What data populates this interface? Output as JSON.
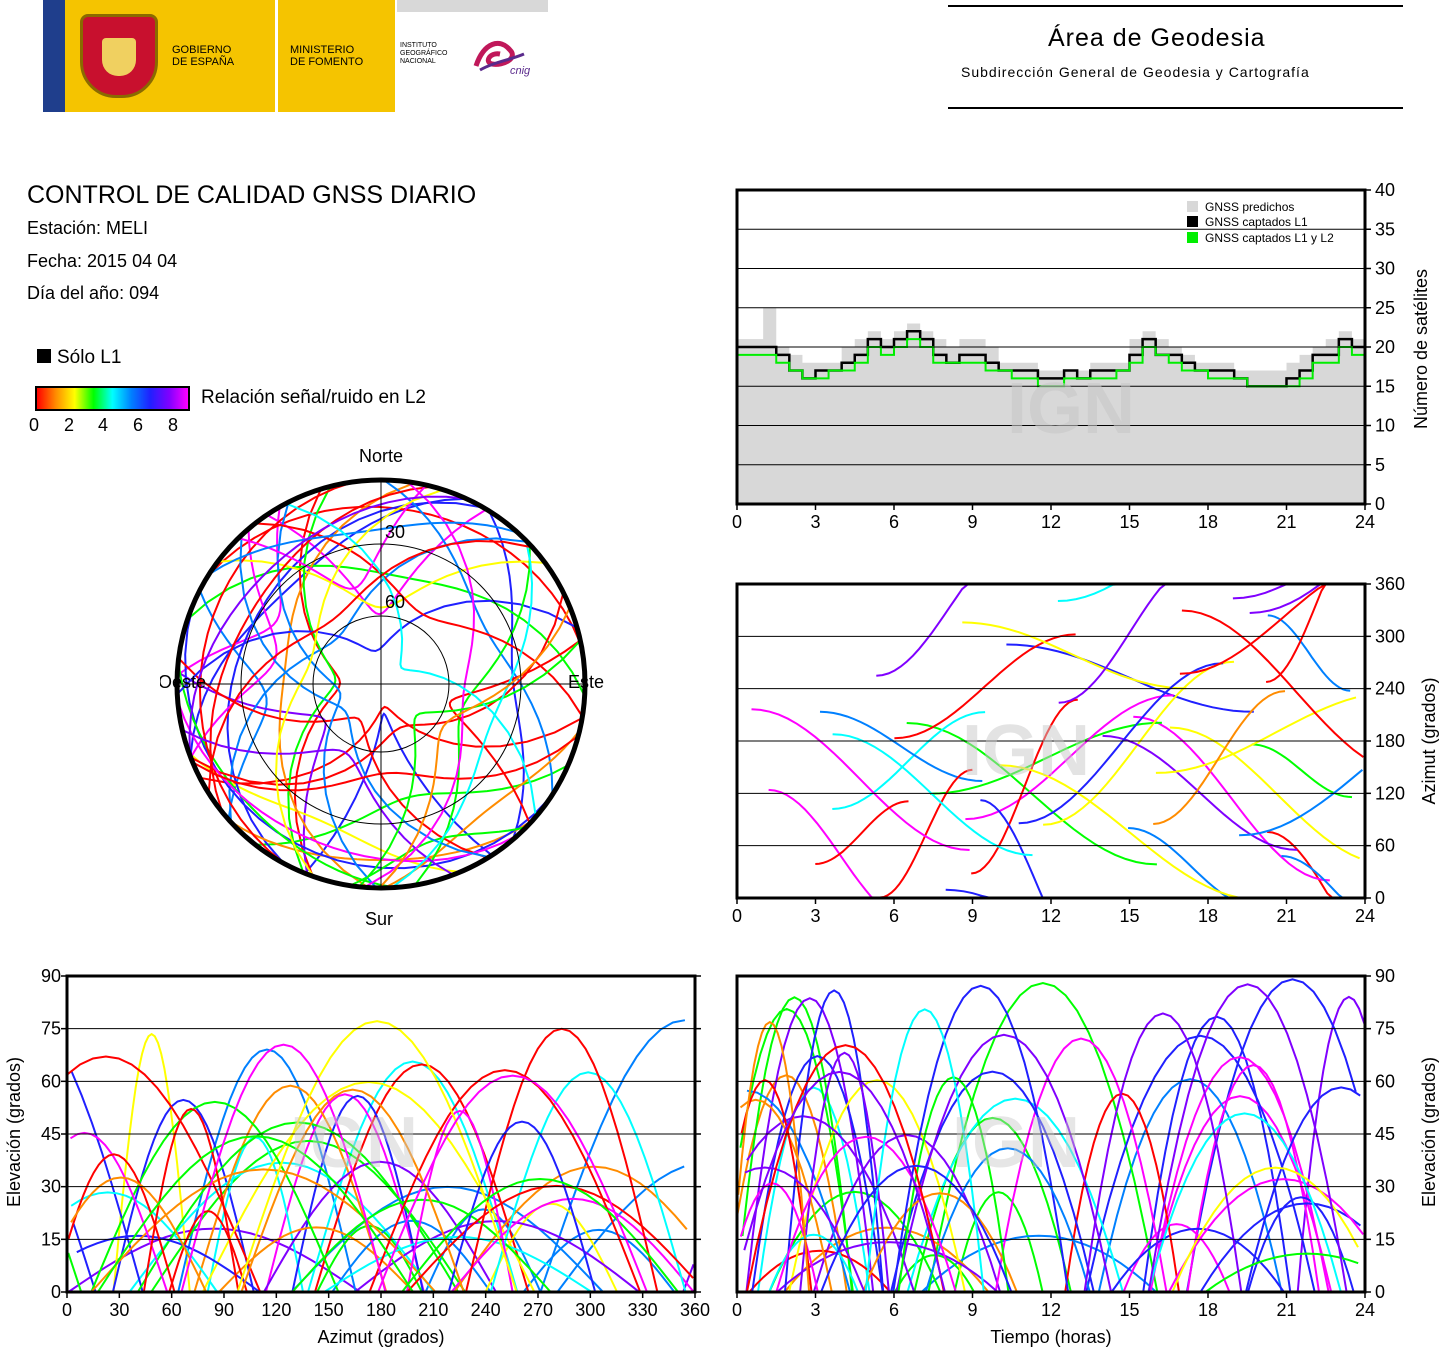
{
  "header": {
    "gobierno": "GOBIERNO\nDE ESPAÑA",
    "ministerio": "MINISTERIO\nDE FOMENTO",
    "instituto": "INSTITUTO\nGEOGRÁFICO\nNACIONAL",
    "cnig": "cnig",
    "area_title": "Área de Geodesia",
    "area_subtitle": "Subdirección General de Geodesia y Cartografía"
  },
  "info": {
    "title": "CONTROL DE CALIDAD GNSS DIARIO",
    "station": "Estación: MELI",
    "date": "Fecha: 2015 04 04",
    "doy": "Día del año: 094",
    "l1_only": "Sólo L1",
    "snr_label": "Relación señal/ruido en L2",
    "snr_ticks": [
      "0",
      "2",
      "4",
      "6",
      "8"
    ]
  },
  "colors": {
    "predicted_fill": "#d8d8d8",
    "l1_only": "#000000",
    "l1_l2": "#00ee00",
    "snr_scale": [
      "#ff0000",
      "#ff8c00",
      "#ffff00",
      "#00ff00",
      "#00ffff",
      "#0080ff",
      "#2020ff",
      "#8000ff",
      "#ff00ff"
    ]
  },
  "watermark": "IGN",
  "chart_data": [
    {
      "id": "sat-count",
      "type": "area",
      "xlim": [
        0,
        24
      ],
      "ylim": [
        0,
        40
      ],
      "xticks": [
        "0",
        "3",
        "6",
        "9",
        "12",
        "15",
        "18",
        "21",
        "24"
      ],
      "yticks": [
        "0",
        "5",
        "10",
        "15",
        "20",
        "25",
        "30",
        "35",
        "40"
      ],
      "ylabel": "Número de satélites",
      "legend_position": "top-right",
      "series": [
        {
          "name": "GNSS predichos",
          "x": [
            0,
            1,
            1.5,
            2,
            2.5,
            3,
            3.5,
            4,
            4.5,
            5,
            5.5,
            6,
            6.5,
            7,
            7.5,
            8,
            8.5,
            9,
            9.5,
            10,
            10.5,
            11,
            11.5,
            12,
            12.5,
            13,
            13.5,
            14,
            14.5,
            15,
            15.5,
            16,
            16.5,
            17,
            17.5,
            18,
            18.5,
            19,
            19.5,
            20,
            20.5,
            21,
            21.5,
            22,
            22.5,
            23,
            23.5,
            24
          ],
          "values": [
            21,
            25,
            20,
            19,
            18,
            18,
            18,
            20,
            21,
            22,
            21,
            22,
            23,
            22,
            21,
            20,
            21,
            21,
            20,
            18,
            18,
            18,
            17,
            17,
            17,
            17,
            18,
            18,
            18,
            21,
            22,
            21,
            20,
            19,
            18,
            18,
            18,
            17,
            17,
            17,
            17,
            18,
            19,
            20,
            21,
            22,
            21,
            21
          ]
        },
        {
          "name": "GNSS captados L1",
          "x": [
            0,
            1,
            1.5,
            2,
            2.5,
            3,
            3.5,
            4,
            4.5,
            5,
            5.5,
            6,
            6.5,
            7,
            7.5,
            8,
            8.5,
            9,
            9.5,
            10,
            10.5,
            11,
            11.5,
            12,
            12.5,
            13,
            13.5,
            14,
            14.5,
            15,
            15.5,
            16,
            16.5,
            17,
            17.5,
            18,
            18.5,
            19,
            19.5,
            20,
            20.5,
            21,
            21.5,
            22,
            22.5,
            23,
            23.5,
            24
          ],
          "values": [
            20,
            20,
            19,
            17,
            16,
            17,
            17,
            18,
            19,
            21,
            20,
            21,
            22,
            21,
            19,
            18,
            19,
            19,
            18,
            17,
            17,
            17,
            16,
            16,
            17,
            16,
            17,
            17,
            17,
            19,
            21,
            19,
            19,
            18,
            17,
            17,
            17,
            16,
            15,
            15,
            15,
            16,
            17,
            19,
            19,
            21,
            20,
            20
          ]
        },
        {
          "name": "GNSS captados L1 y L2",
          "x": [
            0,
            1,
            1.5,
            2,
            2.5,
            3,
            3.5,
            4,
            4.5,
            5,
            5.5,
            6,
            6.5,
            7,
            7.5,
            8,
            8.5,
            9,
            9.5,
            10,
            10.5,
            11,
            11.5,
            12,
            12.5,
            13,
            13.5,
            14,
            14.5,
            15,
            15.5,
            16,
            16.5,
            17,
            17.5,
            18,
            18.5,
            19,
            19.5,
            20,
            20.5,
            21,
            21.5,
            22,
            22.5,
            23,
            23.5,
            24
          ],
          "values": [
            19,
            19,
            18,
            17,
            16,
            16,
            17,
            17,
            18,
            20,
            19,
            20,
            21,
            20,
            18,
            18,
            18,
            18,
            17,
            17,
            16,
            16,
            15,
            15,
            16,
            16,
            16,
            16,
            17,
            18,
            20,
            19,
            18,
            17,
            17,
            16,
            16,
            16,
            15,
            15,
            15,
            15,
            16,
            18,
            18,
            20,
            19,
            19
          ]
        }
      ]
    },
    {
      "id": "skyplot",
      "type": "scatter",
      "polar": true,
      "direction_labels": {
        "north": "Norte",
        "south": "Sur",
        "east": "Este",
        "west": "Oeste"
      },
      "ring_labels": [
        "30",
        "60"
      ]
    },
    {
      "id": "azimuth-time",
      "type": "scatter",
      "xlim": [
        0,
        24
      ],
      "ylim": [
        0,
        360
      ],
      "xticks": [
        "0",
        "3",
        "6",
        "9",
        "12",
        "15",
        "18",
        "21",
        "24"
      ],
      "yticks": [
        "0",
        "60",
        "120",
        "180",
        "240",
        "300",
        "360"
      ],
      "ylabel": "Azimut (grados)"
    },
    {
      "id": "elevation-azimuth",
      "type": "scatter",
      "xlim": [
        0,
        360
      ],
      "ylim": [
        0,
        90
      ],
      "xticks": [
        "0",
        "30",
        "60",
        "90",
        "120",
        "150",
        "180",
        "210",
        "240",
        "270",
        "300",
        "330",
        "360"
      ],
      "yticks": [
        "0",
        "15",
        "30",
        "45",
        "60",
        "75",
        "90"
      ],
      "xlabel": "Azimut (grados)",
      "ylabel": "Elevación (grados)"
    },
    {
      "id": "elevation-time",
      "type": "scatter",
      "xlim": [
        0,
        24
      ],
      "ylim": [
        0,
        90
      ],
      "xticks": [
        "0",
        "3",
        "6",
        "9",
        "12",
        "15",
        "18",
        "21",
        "24"
      ],
      "yticks": [
        "0",
        "15",
        "30",
        "45",
        "60",
        "75",
        "90"
      ],
      "xlabel": "Tiempo (horas)",
      "ylabel": "Elevación (grados)"
    }
  ]
}
